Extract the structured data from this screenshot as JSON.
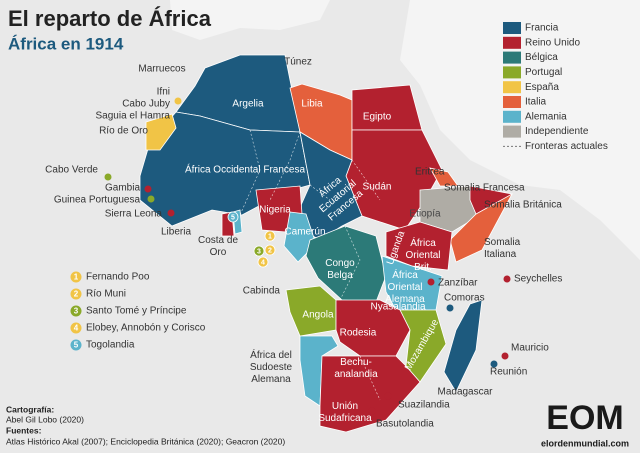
{
  "header": {
    "title": "El reparto de África",
    "subtitle": "África en 1914"
  },
  "legend": {
    "items": [
      {
        "label": "Francia",
        "color": "#1d5a7e"
      },
      {
        "label": "Reino Unido",
        "color": "#b3212f"
      },
      {
        "label": "Bélgica",
        "color": "#2c7a78"
      },
      {
        "label": "Portugal",
        "color": "#8aa929"
      },
      {
        "label": "España",
        "color": "#f1c446"
      },
      {
        "label": "Italia",
        "color": "#e4603c"
      },
      {
        "label": "Alemania",
        "color": "#5bb3cb"
      },
      {
        "label": "Independiente",
        "color": "#afaca5"
      },
      {
        "label": "Fronteras actuales"
      }
    ]
  },
  "map": {
    "labels": [
      "Túnez",
      "Marruecos",
      "Ifni",
      "Cabo Juby",
      "Saguia el Hamra",
      "Río de Oro",
      "Argelia",
      "Libia",
      "Egipto",
      "África Occidental Francesa",
      "Sudán",
      [
        "África",
        "Ecuatorial",
        "Francesa"
      ],
      "Eritrea",
      "Somalia Francesa",
      "Somalia Británica",
      [
        "Somalia",
        "Italiana"
      ],
      "Etiopía",
      "Cabo Verde",
      "Gambia",
      "Guinea Portuguesa",
      "Sierra Leona",
      "Liberia",
      "Nigeria",
      [
        "Costa de",
        "Oro"
      ],
      "Camerún",
      [
        "Congo",
        "Belga"
      ],
      "Uganda",
      [
        "África",
        "Oriental",
        "Brit."
      ],
      [
        "África",
        "Oriental",
        "Alemana"
      ],
      "Zanzíbar",
      "Seychelles",
      "Cabinda",
      "Angola",
      "Comoras",
      "Nyasalandia",
      "Rodesia",
      "Mozambique",
      "Mauricio",
      "Reunión",
      [
        "África del",
        "Sudoeste",
        "Alemana"
      ],
      [
        "Bechu-",
        "analandia"
      ],
      "Madagascar",
      [
        "Unión",
        "Sudafricana"
      ],
      "Suazilandia",
      "Basutolandia"
    ]
  },
  "islands": {
    "items": [
      {
        "number": 1,
        "label": "Fernando Poo",
        "color": "#f1c446"
      },
      {
        "number": 2,
        "label": "Río Muni",
        "color": "#f1c446"
      },
      {
        "number": 3,
        "label": "Santo Tomé y Príncipe",
        "color": "#8aa929"
      },
      {
        "number": 4,
        "label": "Elobey, Annobón y Corisco",
        "color": "#f1c446"
      },
      {
        "number": 5,
        "label": "Togolandia",
        "color": "#5bb3cb"
      }
    ]
  },
  "footer": {
    "cartography_label": "Cartografía:",
    "cartography": "Abel Gil Lobo (2020)",
    "sources_label": "Fuentes:",
    "sources": "Atlas Histórico Akal (2007); Enciclopedia Británica (2020); Geacron (2020)"
  },
  "logo": {
    "mark": "EOM",
    "site": "elordenmundial.com"
  }
}
